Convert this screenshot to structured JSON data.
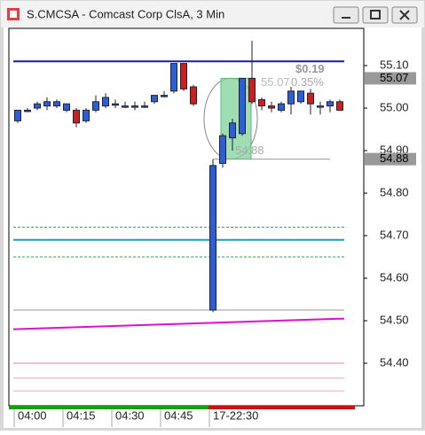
{
  "chart_data": {
    "type": "candlestick",
    "title": "S.CMCSA - Comcast Corp ClsA, 3 Min",
    "categories": [
      "04:00",
      null,
      null,
      null,
      null,
      "04:15",
      null,
      null,
      null,
      null,
      "04:30",
      null,
      null,
      null,
      null,
      "04:45",
      null,
      null,
      null,
      null,
      "17-22:30",
      null,
      null,
      null,
      null,
      null,
      null,
      null,
      null,
      null,
      null,
      null,
      null,
      null
    ],
    "candles": [
      {
        "open": 54.97,
        "high": 54.995,
        "low": 54.965,
        "close": 54.995
      },
      {
        "open": 54.995,
        "high": 55.0,
        "low": 54.99,
        "close": 54.995
      },
      {
        "open": 55.0,
        "high": 55.015,
        "low": 54.995,
        "close": 55.01
      },
      {
        "open": 55.005,
        "high": 55.025,
        "low": 54.995,
        "close": 55.015
      },
      {
        "open": 55.005,
        "high": 55.02,
        "low": 55.0,
        "close": 55.015
      },
      {
        "open": 54.995,
        "high": 55.01,
        "low": 54.99,
        "close": 55.01
      },
      {
        "open": 54.995,
        "high": 55.0,
        "low": 54.955,
        "close": 54.965
      },
      {
        "open": 54.97,
        "high": 55.0,
        "low": 54.965,
        "close": 54.995
      },
      {
        "open": 54.995,
        "high": 55.03,
        "low": 54.99,
        "close": 55.015
      },
      {
        "open": 55.005,
        "high": 55.035,
        "low": 55.0,
        "close": 55.025
      },
      {
        "open": 55.01,
        "high": 55.02,
        "low": 55.0,
        "close": 55.01
      },
      {
        "open": 55.005,
        "high": 55.015,
        "low": 55.0,
        "close": 55.005
      },
      {
        "open": 55.005,
        "high": 55.015,
        "low": 54.995,
        "close": 55.005
      },
      {
        "open": 55.005,
        "high": 55.015,
        "low": 55.0,
        "close": 55.005
      },
      {
        "open": 55.015,
        "high": 55.03,
        "low": 55.01,
        "close": 55.03
      },
      {
        "open": 55.03,
        "high": 55.04,
        "low": 55.025,
        "close": 55.03
      },
      {
        "open": 55.04,
        "high": 55.105,
        "low": 55.035,
        "close": 55.105
      },
      {
        "open": 55.105,
        "high": 55.105,
        "low": 55.04,
        "close": 55.045
      },
      {
        "open": 55.05,
        "high": 55.055,
        "low": 55.005,
        "close": 55.01
      },
      null,
      {
        "open": 54.525,
        "high": 54.88,
        "low": 54.52,
        "close": 54.865
      },
      {
        "open": 54.87,
        "high": 54.94,
        "low": 54.86,
        "close": 54.935
      },
      {
        "open": 54.93,
        "high": 54.975,
        "low": 54.9,
        "close": 54.965
      },
      {
        "open": 54.94,
        "high": 55.07,
        "low": 54.935,
        "close": 55.07
      },
      {
        "open": 55.07,
        "high": 55.158,
        "low": 55.01,
        "close": 55.015
      },
      {
        "open": 55.02,
        "high": 55.025,
        "low": 54.995,
        "close": 55.005
      },
      {
        "open": 55.005,
        "high": 55.015,
        "low": 54.99,
        "close": 55.0
      },
      {
        "open": 54.995,
        "high": 55.015,
        "low": 54.99,
        "close": 55.01
      },
      {
        "open": 55.01,
        "high": 55.05,
        "low": 54.985,
        "close": 55.04
      },
      {
        "open": 55.015,
        "high": 55.04,
        "low": 55.01,
        "close": 55.04
      },
      {
        "open": 55.035,
        "high": 55.045,
        "low": 54.985,
        "close": 55.01
      },
      {
        "open": 55.005,
        "high": 55.015,
        "low": 54.985,
        "close": 55.005
      },
      {
        "open": 55.005,
        "high": 55.02,
        "low": 54.99,
        "close": 55.015
      },
      {
        "open": 55.015,
        "high": 55.02,
        "low": 54.995,
        "close": 54.995
      }
    ],
    "up_color": "#2c5fd6",
    "down_color": "#cc2020",
    "ylim": [
      54.3,
      55.1875
    ],
    "yticks": [
      {
        "value": 54.4,
        "label": "54.40"
      },
      {
        "value": 54.5,
        "label": "54.50"
      },
      {
        "value": 54.6,
        "label": "54.60"
      },
      {
        "value": 54.7,
        "label": "54.70"
      },
      {
        "value": 54.8,
        "label": "54.80"
      },
      {
        "value": 54.9,
        "label": "54.90"
      },
      {
        "value": 55.0,
        "label": "55.00"
      },
      {
        "value": 55.1,
        "label": "55.10"
      }
    ],
    "overlays": [
      {
        "values": [
          55.11
        ],
        "color": "#1a1aa8",
        "width": 2,
        "dashed": false
      },
      {
        "values": [
          54.72
        ],
        "color": "#2aa84a",
        "width": 1,
        "dashed": true
      },
      {
        "values": [
          54.69
        ],
        "color": "#1aa0b0",
        "width": 2,
        "dashed": false
      },
      {
        "values": [
          54.65
        ],
        "color": "#2aa84a",
        "width": 1,
        "dashed": true
      },
      {
        "values": [
          54.525
        ],
        "color": "#999999",
        "width": 1,
        "dashed": false
      },
      {
        "values": [
          54.48,
          54.505
        ],
        "color": "#dd11cc",
        "width": 2,
        "dashed": false
      },
      {
        "values": [
          54.4
        ],
        "color": "#e080c0",
        "width": 1,
        "dashed": false
      },
      {
        "values": [
          54.365
        ],
        "color": "#f0a0d0",
        "width": 1,
        "dashed": false
      },
      {
        "values": [
          54.335
        ],
        "color": "#f0a0d0",
        "width": 1,
        "dashed": false
      }
    ],
    "price_markers": [
      55.07,
      54.88
    ],
    "measure": {
      "from": 54.88,
      "to": 55.07,
      "change_label": "$0.19",
      "pct_label": "0.35%"
    }
  }
}
